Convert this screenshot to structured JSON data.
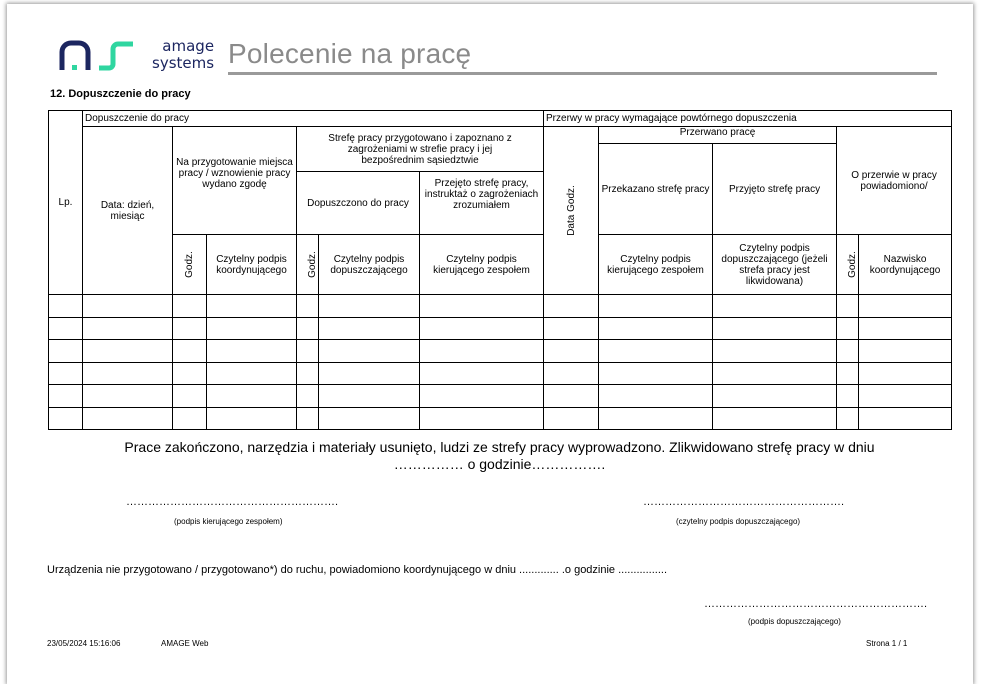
{
  "header": {
    "logo_text_line1": "amage",
    "logo_text_line2": "systems",
    "title": "Polecenie na pracę",
    "colors": {
      "logo_navy": "#1c2660",
      "logo_green": "#2fd6a0",
      "title_gray": "#8a8a8a"
    }
  },
  "section_title": "12. Dopuszczenie do pracy",
  "table": {
    "lp": "Lp.",
    "dopuszczenie": "Dopuszczenie do pracy",
    "przerwy": "Przerwy w pracy wymagające powtórnego dopuszczenia",
    "data_dzien": "Data: dzień, miesiąc",
    "na_przygotowanie": "Na przygotowanie miejsca pracy / wznowienie pracy wydano zgodę",
    "strefe": "Strefę pracy przygotowano i zapoznano z zagrożeniami w strefie pracy i jej bezpośrednim sąsiedztwie",
    "data_godz": "Data Godz.",
    "przerwano": "Przerwano pracę",
    "o_przerwie": "O przerwie w pracy powiadomiono/",
    "przekazano": "Przekazano strefę pracy",
    "przyjeto": "Przyjęto strefę pracy",
    "dopuszczono": "Dopuszczono do pracy",
    "przejeto": "Przejęto strefę pracy, instruktaż o zagrożeniach zrozumiałem",
    "godz": "Godz.",
    "podpis_koord": "Czytelny podpis koordynującego",
    "podpis_dopusz": "Czytelny podpis dopuszczającego",
    "podpis_kier": "Czytelny podpis kierującego zespołem",
    "podpis_dopusz_likw": "Czytelny podpis dopuszczającego (jeżeli strefa pracy jest likwidowana)",
    "nazwisko_koord": "Nazwisko koordynującego",
    "empty_rows": 6
  },
  "completion": {
    "line1": "Prace zakończono, narzędzia i materiały usunięto, ludzi ze strefy pracy wyprowadzono. Zlikwidowano strefę pracy w dniu",
    "line2": "…………… o godzinie…………….",
    "sig_left_dots": "………………………………………………….",
    "sig_left_label": "(podpis kierującego zespołem)",
    "sig_right_dots": "……………………………………………….",
    "sig_right_label": "(czytelny podpis dopuszczającego)"
  },
  "devices": {
    "text": "Urządzenia nie przygotowano / przygotowano*) do ruchu, powiadomiono koordynującego w dniu ............. .o godzinie ................",
    "sig_dots": "…………………………………………………….",
    "sig_label": "(podpis dopuszczającego)"
  },
  "footer": {
    "timestamp": "23/05/2024 15:16:06",
    "app": "AMAGE Web",
    "page": "Strona 1 / 1"
  }
}
